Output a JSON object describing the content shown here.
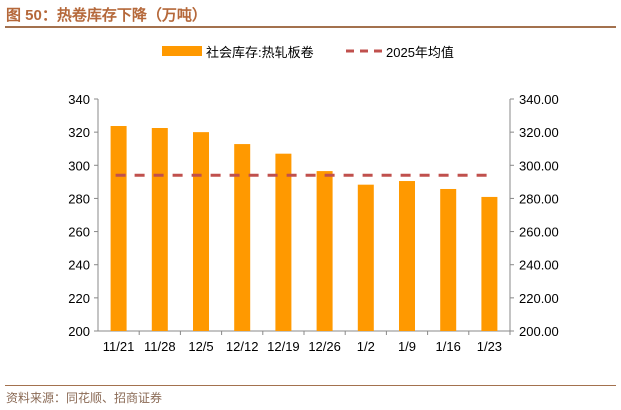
{
  "title": "图 50：热卷库存下降（万吨）",
  "source": "资料来源：同花顺、招商证券",
  "chart_data": {
    "type": "bar",
    "categories": [
      "11/21",
      "11/28",
      "12/5",
      "12/12",
      "12/19",
      "12/26",
      "1/2",
      "1/9",
      "1/16",
      "1/23"
    ],
    "series": [
      {
        "name": "社会库存:热轧板卷",
        "type": "bar",
        "color": "#ff9900",
        "values": [
          323.7,
          322.5,
          320.0,
          312.8,
          307.0,
          296.5,
          288.3,
          290.5,
          285.7,
          280.9
        ]
      },
      {
        "name": "2025年均值",
        "type": "line-dashed",
        "color": "#c0504d",
        "value": 294
      }
    ],
    "ylim": [
      200,
      340
    ],
    "yticks_left": [
      "200",
      "220",
      "240",
      "260",
      "280",
      "300",
      "320",
      "340"
    ],
    "yticks_right": [
      "200.00",
      "220.00",
      "240.00",
      "260.00",
      "280.00",
      "300.00",
      "320.00",
      "340.00"
    ],
    "legend_position": "top",
    "grid": false
  }
}
